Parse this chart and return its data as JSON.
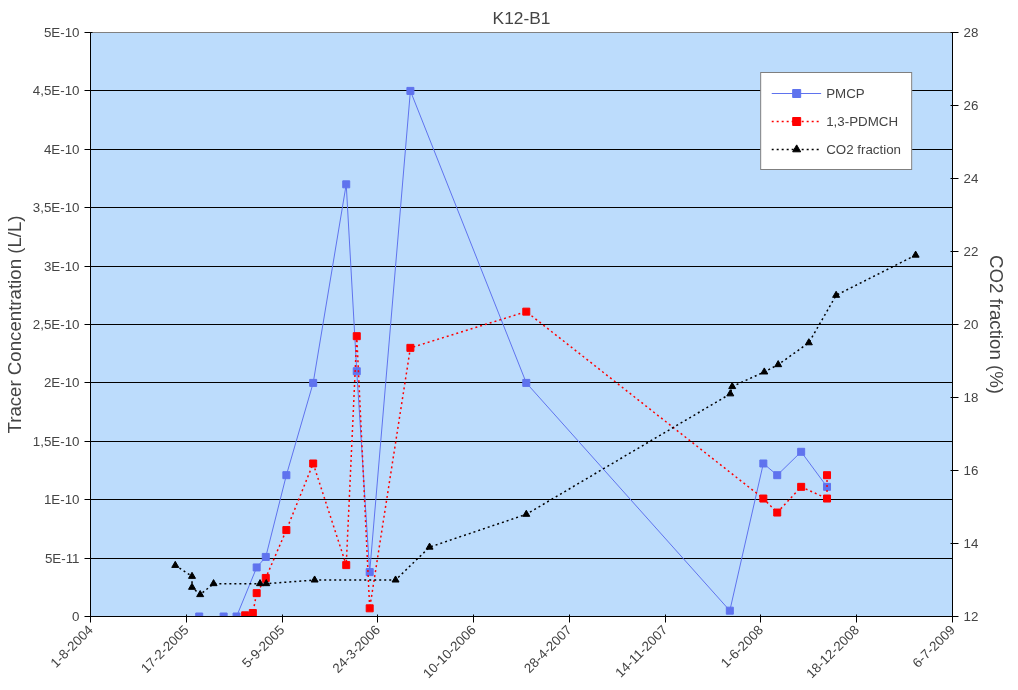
{
  "chart_data": {
    "type": "line",
    "title": "K12-B1",
    "ylabel": "Tracer Concentration (L/L)",
    "y2label": "CO2 fraction (%)",
    "xlim": [
      "2004-08-01",
      "2009-07-06"
    ],
    "xticks": [
      {
        "value": "2004-08-01",
        "label": "1-8-2004"
      },
      {
        "value": "2005-02-17",
        "label": "17-2-2005"
      },
      {
        "value": "2005-09-05",
        "label": "5-9-2005"
      },
      {
        "value": "2006-03-24",
        "label": "24-3-2006"
      },
      {
        "value": "2006-10-10",
        "label": "10-10-2006"
      },
      {
        "value": "2007-04-28",
        "label": "28-4-2007"
      },
      {
        "value": "2007-11-14",
        "label": "14-11-2007"
      },
      {
        "value": "2008-06-01",
        "label": "1-6-2008"
      },
      {
        "value": "2008-12-18",
        "label": "18-12-2008"
      },
      {
        "value": "2009-07-06",
        "label": "6-7-2009"
      }
    ],
    "ylim": [
      0,
      5e-10
    ],
    "yticks": [
      0,
      {
        "value": 5e-11,
        "label": "5E-11"
      },
      {
        "value": 1e-10,
        "label": "1E-10"
      },
      {
        "value": 1.5e-10,
        "label": "1,5E-10"
      },
      {
        "value": 2e-10,
        "label": "2E-10"
      },
      {
        "value": 2.5e-10,
        "label": "2,5E-10"
      },
      {
        "value": 3e-10,
        "label": "3E-10"
      },
      {
        "value": 3.5e-10,
        "label": "3,5E-10"
      },
      {
        "value": 4e-10,
        "label": "4E-10"
      },
      {
        "value": 4.5e-10,
        "label": "4,5E-10"
      },
      {
        "value": 5e-10,
        "label": "5E-10"
      }
    ],
    "y2lim": [
      12,
      28
    ],
    "y2ticks": [
      12,
      14,
      16,
      18,
      20,
      22,
      24,
      26,
      28
    ],
    "grid": "y",
    "legend": "top right",
    "series": [
      {
        "name": "PMCP",
        "color": "#5f73ee",
        "marker": "square",
        "line_style": "solid",
        "x": [
          "2005-03-16",
          "2005-05-06",
          "2005-06-02",
          "2005-07-14",
          "2005-08-02",
          "2005-09-14",
          "2005-11-09",
          "2006-01-17",
          "2006-02-08",
          "2006-03-07",
          "2006-05-31",
          "2007-01-28",
          "2008-03-28",
          "2008-06-06",
          "2008-07-05",
          "2008-08-24",
          "2008-10-17"
        ],
        "values": [
          0,
          0,
          0,
          4.2e-11,
          5.1e-11,
          1.21e-10,
          2e-10,
          3.7e-10,
          2.1e-10,
          3.8e-11,
          4.5e-10,
          2e-10,
          5e-12,
          1.31e-10,
          1.21e-10,
          1.41e-10,
          1.11e-10
        ]
      },
      {
        "name": "1,3-PDMCH",
        "color": "#ff0000",
        "marker": "square",
        "line_style": "dotted",
        "x": [
          "2005-06-20",
          "2005-07-06",
          "2005-07-14",
          "2005-08-02",
          "2005-09-14",
          "2005-11-09",
          "2006-01-17",
          "2006-02-08",
          "2006-03-07",
          "2006-05-31",
          "2007-01-28",
          "2008-06-06",
          "2008-07-05",
          "2008-08-24",
          "2008-10-17",
          "2008-10-17"
        ],
        "values": [
          1e-12,
          3e-12,
          2e-11,
          3.3e-11,
          7.4e-11,
          1.31e-10,
          4.4e-11,
          2.4e-10,
          7e-12,
          2.3e-10,
          2.61e-10,
          1.01e-10,
          8.9e-11,
          1.11e-10,
          1.01e-10,
          1.21e-10
        ]
      },
      {
        "name": "CO2 fraction",
        "color": "#000000",
        "marker": "triangle",
        "line_style": "dotted",
        "axis": "y2",
        "x": [
          "2005-01-25",
          "2005-03-01",
          "2005-03-01",
          "2005-03-18",
          "2005-04-15",
          "2005-07-21",
          "2005-08-03",
          "2005-11-12",
          "2006-04-30",
          "2006-07-10",
          "2007-01-28",
          "2008-03-29",
          "2008-04-02",
          "2008-06-08",
          "2008-07-07",
          "2008-09-09",
          "2008-11-05",
          "2009-04-20"
        ],
        "values": [
          13.4,
          13.1,
          12.8,
          12.6,
          12.9,
          12.9,
          12.9,
          13.0,
          13.0,
          13.9,
          14.8,
          18.1,
          18.3,
          18.7,
          18.9,
          19.5,
          20.8,
          21.9
        ]
      }
    ]
  }
}
